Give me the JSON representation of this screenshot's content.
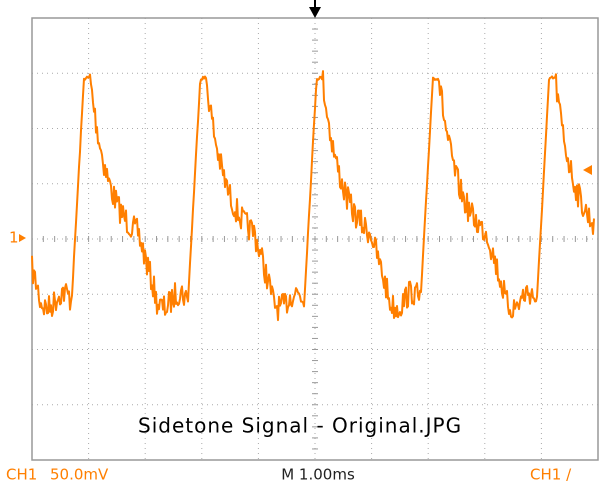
{
  "status_bar": {
    "channel": "CH1",
    "scale": "50.0mV",
    "timebase": "M 1.00ms",
    "trigger": "CH1 /"
  },
  "channel_marker": "1",
  "caption": "Sidetone Signal - Original.JPG"
}
